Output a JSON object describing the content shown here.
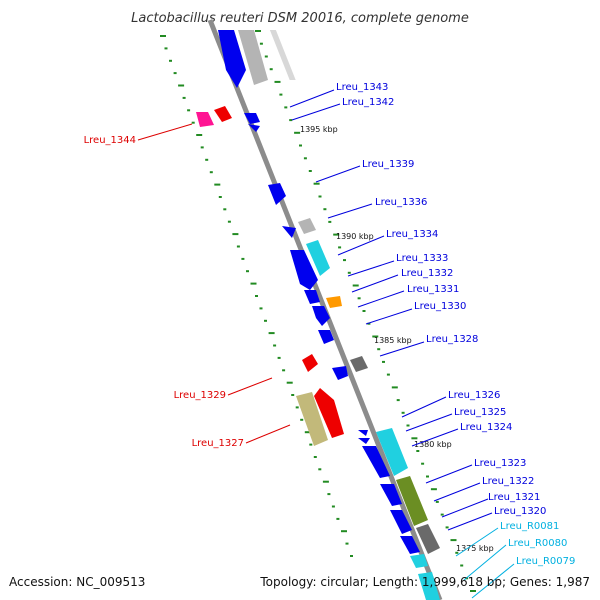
{
  "title": "Lactobacillus reuteri DSM 20016, complete genome",
  "accession": "Accession: NC_009513",
  "summary": "Topology: circular; Length: 1,999,618 bp; Genes: 1,987",
  "colors": {
    "backbone": "#8c8c8c",
    "gc_ticks": "#228b22",
    "blue_gene": "#0000ee",
    "grey_gene": "#b4b4b4",
    "dark_grey_gene": "#6a6a6a",
    "cyan_gene": "#20d0e0",
    "orange_gene": "#ff9900",
    "red_gene": "#ee0000",
    "pink_gene": "#ff1493",
    "olive_gene": "#6b8e23",
    "khaki_gene": "#c2b97a",
    "label_blue": "#0000dd",
    "label_red": "#dd0000",
    "label_cyan": "#00b0e0"
  },
  "scale_labels": [
    "1395 kbp",
    "1390 kbp",
    "1385 kbp",
    "1380 kbp",
    "1375 kbp"
  ],
  "gene_labels": {
    "right": [
      {
        "text": "Lreu_1343",
        "color": "blue"
      },
      {
        "text": "Lreu_1342",
        "color": "blue"
      },
      {
        "text": "Lreu_1339",
        "color": "blue"
      },
      {
        "text": "Lreu_1336",
        "color": "blue"
      },
      {
        "text": "Lreu_1334",
        "color": "blue"
      },
      {
        "text": "Lreu_1333",
        "color": "blue"
      },
      {
        "text": "Lreu_1332",
        "color": "blue"
      },
      {
        "text": "Lreu_1331",
        "color": "blue"
      },
      {
        "text": "Lreu_1330",
        "color": "blue"
      },
      {
        "text": "Lreu_1328",
        "color": "blue"
      },
      {
        "text": "Lreu_1326",
        "color": "blue"
      },
      {
        "text": "Lreu_1325",
        "color": "blue"
      },
      {
        "text": "Lreu_1324",
        "color": "blue"
      },
      {
        "text": "Lreu_1323",
        "color": "blue"
      },
      {
        "text": "Lreu_1322",
        "color": "blue"
      },
      {
        "text": "Lreu_1321",
        "color": "blue"
      },
      {
        "text": "Lreu_1320",
        "color": "blue"
      },
      {
        "text": "Lreu_R0081",
        "color": "cyan"
      },
      {
        "text": "Lreu_R0080",
        "color": "cyan"
      },
      {
        "text": "Lreu_R0079",
        "color": "cyan"
      }
    ],
    "left": [
      {
        "text": "Lreu_1344",
        "color": "red"
      },
      {
        "text": "Lreu_1329",
        "color": "red"
      },
      {
        "text": "Lreu_1327",
        "color": "red"
      }
    ]
  }
}
